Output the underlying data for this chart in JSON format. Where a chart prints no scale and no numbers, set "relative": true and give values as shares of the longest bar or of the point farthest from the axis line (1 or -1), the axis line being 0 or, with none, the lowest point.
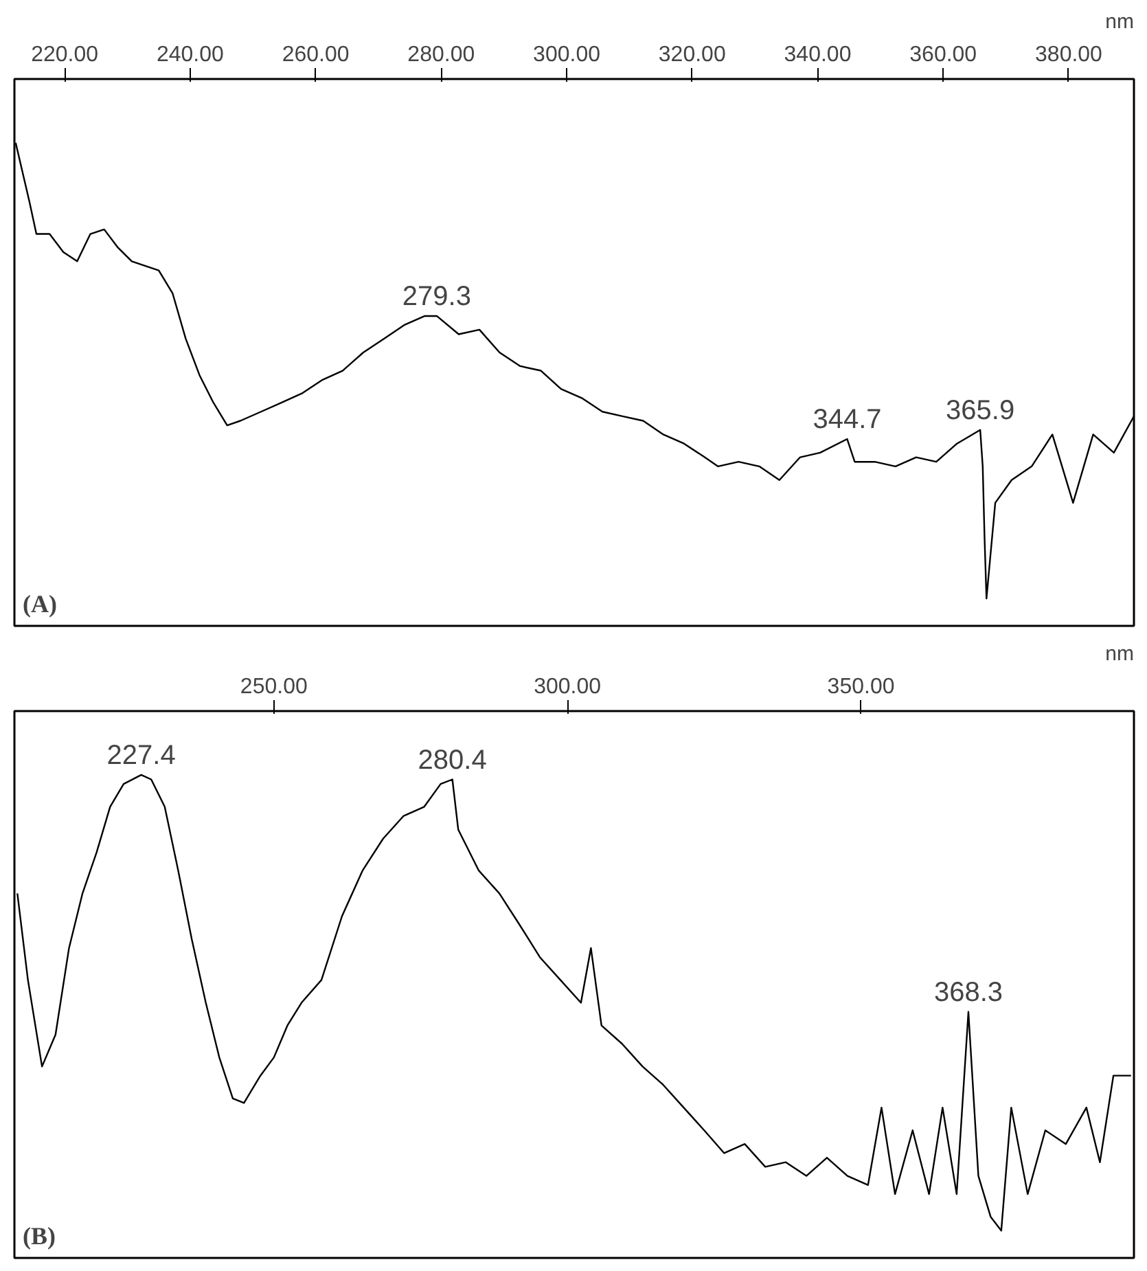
{
  "chart_data": [
    {
      "type": "line",
      "relative": true,
      "xlabel": "nm",
      "xlim": [
        212,
        390.4
      ],
      "xticks": [
        {
          "value": 220,
          "label": "220.00"
        },
        {
          "value": 240,
          "label": "240.00"
        },
        {
          "value": 260,
          "label": "260.00"
        },
        {
          "value": 280,
          "label": "280.00"
        },
        {
          "value": 300,
          "label": "300.00"
        },
        {
          "value": 320,
          "label": "320.00"
        },
        {
          "value": 340,
          "label": "340.00"
        },
        {
          "value": 360,
          "label": "360.00"
        },
        {
          "value": 380,
          "label": "380.00"
        }
      ],
      "tick_labels": "x",
      "grid": false,
      "marker": "none",
      "line_style": "solid",
      "series": [
        {
          "color": "#000000",
          "x": [
            212.2,
            214.4,
            215.5,
            217.6,
            219.8,
            222,
            224.1,
            226.3,
            228.5,
            230.7,
            232.8,
            235,
            237.2,
            239.3,
            241.5,
            243.7,
            245.9,
            248,
            251.3,
            254.6,
            257.8,
            261.1,
            264.3,
            267.6,
            270.9,
            274.1,
            277.4,
            279.3,
            282.8,
            286.1,
            289.3,
            292.6,
            295.9,
            299.1,
            302.4,
            305.7,
            308.9,
            312.2,
            315.4,
            318.7,
            322,
            324.1,
            327.4,
            330.7,
            333.9,
            337.2,
            340.4,
            344.7,
            345.9,
            349.1,
            352.4,
            355.7,
            358.9,
            362.2,
            365.9,
            366.3,
            366.6,
            366.9,
            368.3,
            370.9,
            374.1,
            377.4,
            380.7,
            383.9,
            387.2,
            390.4
          ],
          "values": [
            1.0,
            0.87,
            0.8,
            0.8,
            0.76,
            0.74,
            0.8,
            0.81,
            0.77,
            0.74,
            0.73,
            0.72,
            0.67,
            0.57,
            0.49,
            0.43,
            0.38,
            0.39,
            0.41,
            0.43,
            0.45,
            0.48,
            0.5,
            0.54,
            0.57,
            0.6,
            0.62,
            0.62,
            0.58,
            0.59,
            0.54,
            0.51,
            0.5,
            0.46,
            0.44,
            0.41,
            0.4,
            0.39,
            0.36,
            0.34,
            0.31,
            0.29,
            0.3,
            0.29,
            0.26,
            0.31,
            0.32,
            0.35,
            0.3,
            0.3,
            0.29,
            0.31,
            0.3,
            0.34,
            0.37,
            0.29,
            0.13,
            0,
            0.21,
            0.26,
            0.29,
            0.36,
            0.21,
            0.36,
            0.32,
            0.4
          ]
        }
      ],
      "annotations": [
        {
          "text": "279.3",
          "x": 279.3,
          "y": 0.62
        },
        {
          "text": "344.7",
          "x": 344.7,
          "y": 0.35
        },
        {
          "text": "365.9",
          "x": 365.9,
          "y": 0.37
        },
        "(A)"
      ]
    },
    {
      "type": "line",
      "relative": true,
      "xlabel": "nm",
      "xlim": [
        205.8,
        396.5
      ],
      "xticks": [
        {
          "value": 250,
          "label": "250.00"
        },
        {
          "value": 300,
          "label": "300.00"
        },
        {
          "value": 350,
          "label": "350.00"
        }
      ],
      "tick_labels": "x",
      "grid": false,
      "marker": "none",
      "line_style": "solid",
      "series": [
        {
          "color": "#000000",
          "x": [
            206.3,
            208.1,
            210.5,
            212.8,
            215.1,
            217.4,
            219.8,
            222.1,
            224.4,
            227.4,
            229.1,
            231.4,
            233.7,
            236,
            238.4,
            240.7,
            243,
            244.9,
            247.7,
            250,
            252.3,
            254.7,
            258.1,
            261.6,
            265.1,
            268.6,
            272.1,
            275.6,
            278.4,
            280.4,
            281.4,
            284.9,
            288.4,
            291.9,
            295.3,
            298.8,
            302.3,
            304,
            305.8,
            309.3,
            312.8,
            316.3,
            319.8,
            323.3,
            326.7,
            330.2,
            333.7,
            337.2,
            340.7,
            344.2,
            347.7,
            351.2,
            353.5,
            355.8,
            358.8,
            361.6,
            363.9,
            366.3,
            368.3,
            370,
            372.1,
            373.9,
            375.6,
            378.4,
            381.4,
            384.9,
            388.4,
            390.7,
            393,
            396
          ],
          "values": [
            0.74,
            0.55,
            0.36,
            0.43,
            0.62,
            0.74,
            0.83,
            0.93,
            0.98,
            1.0,
            0.99,
            0.93,
            0.79,
            0.64,
            0.5,
            0.38,
            0.29,
            0.28,
            0.34,
            0.38,
            0.45,
            0.5,
            0.55,
            0.69,
            0.79,
            0.86,
            0.91,
            0.93,
            0.98,
            0.99,
            0.88,
            0.79,
            0.74,
            0.67,
            0.6,
            0.55,
            0.5,
            0.62,
            0.45,
            0.41,
            0.36,
            0.32,
            0.27,
            0.22,
            0.17,
            0.19,
            0.14,
            0.15,
            0.12,
            0.16,
            0.12,
            0.1,
            0.27,
            0.08,
            0.22,
            0.08,
            0.27,
            0.08,
            0.48,
            0.12,
            0.03,
            0,
            0.27,
            0.08,
            0.22,
            0.19,
            0.27,
            0.15,
            0.34,
            0.34
          ]
        }
      ],
      "annotations": [
        {
          "text": "227.4",
          "x": 227.4,
          "y": 1.0
        },
        {
          "text": "280.4",
          "x": 280.4,
          "y": 0.99
        },
        {
          "text": "368.3",
          "x": 368.3,
          "y": 0.48
        },
        "(B)"
      ]
    }
  ]
}
